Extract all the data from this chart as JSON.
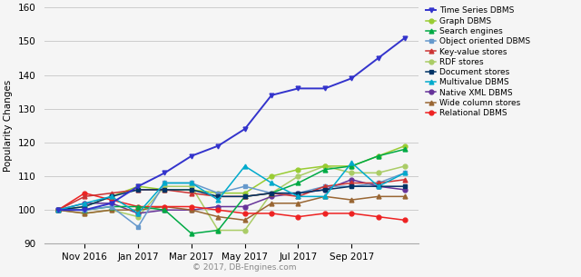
{
  "ylabel": "Popularity Changes",
  "copyright": "© 2017, DB-Engines.com",
  "ylim": [
    90,
    160
  ],
  "yticks": [
    90,
    100,
    110,
    120,
    130,
    140,
    150,
    160
  ],
  "x_labels": [
    "Nov 2016",
    "Jan 2017",
    "Mar 2017",
    "May 2017",
    "Jul 2017",
    "Sep 2017"
  ],
  "series": [
    {
      "name": "Time Series DBMS",
      "color": "#3333cc",
      "marker": "v",
      "markersize": 3.5,
      "linewidth": 1.4,
      "zorder": 10,
      "values": [
        100,
        100,
        102,
        107,
        111,
        116,
        119,
        124,
        134,
        136,
        136,
        139,
        145,
        151
      ]
    },
    {
      "name": "Graph DBMS",
      "color": "#99cc33",
      "marker": "o",
      "markersize": 3.5,
      "linewidth": 1.1,
      "zorder": 5,
      "values": [
        100,
        101,
        104,
        107,
        106,
        106,
        105,
        105,
        110,
        112,
        113,
        113,
        116,
        119
      ]
    },
    {
      "name": "Search engines",
      "color": "#00aa44",
      "marker": "^",
      "markersize": 3.5,
      "linewidth": 1.1,
      "zorder": 5,
      "values": [
        100,
        100,
        101,
        101,
        100,
        93,
        94,
        104,
        105,
        108,
        112,
        113,
        116,
        118
      ]
    },
    {
      "name": "Object oriented DBMS",
      "color": "#6699cc",
      "marker": "s",
      "markersize": 3.5,
      "linewidth": 1.1,
      "zorder": 5,
      "values": [
        100,
        100,
        101,
        95,
        108,
        108,
        105,
        107,
        105,
        105,
        107,
        107,
        108,
        111
      ]
    },
    {
      "name": "Key-value stores",
      "color": "#cc3333",
      "marker": "^",
      "markersize": 3.5,
      "linewidth": 1.1,
      "zorder": 5,
      "values": [
        100,
        104,
        105,
        106,
        106,
        105,
        104,
        104,
        105,
        104,
        107,
        108,
        108,
        109
      ]
    },
    {
      "name": "RDF stores",
      "color": "#aacc66",
      "marker": "o",
      "markersize": 3.5,
      "linewidth": 1.1,
      "zorder": 4,
      "values": [
        100,
        99,
        100,
        98,
        107,
        107,
        94,
        94,
        105,
        110,
        113,
        111,
        111,
        113
      ]
    },
    {
      "name": "Document stores",
      "color": "#003366",
      "marker": "s",
      "markersize": 3.5,
      "linewidth": 1.1,
      "zorder": 5,
      "values": [
        100,
        101,
        104,
        106,
        106,
        106,
        104,
        104,
        105,
        105,
        106,
        107,
        107,
        107
      ]
    },
    {
      "name": "Multivalue DBMS",
      "color": "#00aacc",
      "marker": "^",
      "markersize": 3.5,
      "linewidth": 1.1,
      "zorder": 5,
      "values": [
        100,
        102,
        104,
        99,
        108,
        108,
        103,
        113,
        108,
        104,
        104,
        114,
        107,
        111
      ]
    },
    {
      "name": "Native XML DBMS",
      "color": "#663399",
      "marker": "o",
      "markersize": 3.5,
      "linewidth": 1.1,
      "zorder": 4,
      "values": [
        100,
        102,
        102,
        99,
        100,
        100,
        101,
        101,
        104,
        105,
        106,
        109,
        107,
        106
      ]
    },
    {
      "name": "Wide column stores",
      "color": "#996633",
      "marker": "^",
      "markersize": 3.5,
      "linewidth": 1.1,
      "zorder": 4,
      "values": [
        100,
        99,
        100,
        100,
        101,
        100,
        98,
        97,
        102,
        102,
        104,
        103,
        104,
        104
      ]
    },
    {
      "name": "Relational DBMS",
      "color": "#ee2222",
      "marker": "o",
      "markersize": 3.5,
      "linewidth": 1.1,
      "zorder": 4,
      "values": [
        100,
        105,
        103,
        101,
        101,
        101,
        100,
        99,
        99,
        98,
        99,
        99,
        98,
        97
      ]
    }
  ],
  "background_color": "#f5f5f5",
  "grid_color": "#cccccc",
  "legend_fontsize": 6.5,
  "axis_fontsize": 7.5,
  "ylabel_fontsize": 7.5
}
